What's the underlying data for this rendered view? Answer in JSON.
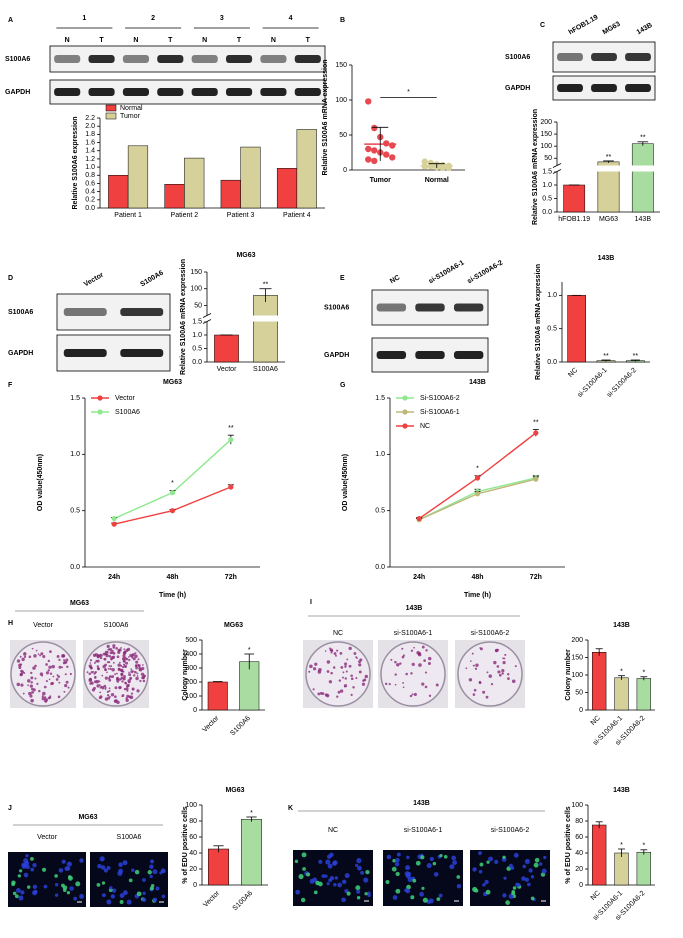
{
  "figure": {
    "panel_letters": [
      "A",
      "B",
      "C",
      "D",
      "E",
      "F",
      "G",
      "H",
      "I",
      "J",
      "K"
    ],
    "blots": [
      {
        "groups": [
          "1",
          "2",
          "3",
          "4"
        ],
        "lanes": [
          "N",
          "T",
          "N",
          "T",
          "N",
          "T",
          "N",
          "T"
        ],
        "rows": [
          "S100A6",
          "GAPDH"
        ]
      },
      {
        "lanes": [
          "hFOB1.19",
          "MG63",
          "143B"
        ],
        "rows": [
          "S100A6",
          "GAPDH"
        ]
      },
      {
        "lanes": [
          "Vector",
          "S100A6"
        ],
        "rows": [
          "S100A6",
          "GAPDH"
        ]
      },
      {
        "lanes": [
          "NC",
          "si-S100A6-1",
          "si-S100A6-2"
        ],
        "rows": [
          "S100A6",
          "GAPDH"
        ]
      }
    ],
    "images": [
      {
        "group": "MG63",
        "labels": [
          "Vector",
          "S100A6"
        ]
      },
      {
        "group": "143B",
        "labels": [
          "NC",
          "si-S100A6-1",
          "si-S100A6-2"
        ]
      },
      {
        "group": "MG63",
        "labels": [
          "Vector",
          "S100A6"
        ]
      },
      {
        "group": "143B",
        "labels": [
          "NC",
          "si-S100A6-1",
          "si-S100A6-2"
        ]
      }
    ]
  },
  "chart_data": [
    {
      "type": "bar",
      "categories": [
        "Patient 1",
        "Patient 2",
        "Patient 3",
        "Patient 4"
      ],
      "series": [
        {
          "name": "Normal",
          "color": "#f04040",
          "values": [
            0.8,
            0.58,
            0.68,
            0.97
          ]
        },
        {
          "name": "Tumor",
          "color": "#d6d19a",
          "values": [
            1.52,
            1.22,
            1.49,
            1.92
          ]
        }
      ],
      "ylabel": "Relative S100A6 expression",
      "ylim": [
        0,
        2.2
      ],
      "yticks": [
        {
          "value": 0,
          "label": "0.0"
        },
        {
          "value": 0.2,
          "label": "0.2"
        },
        {
          "value": 0.4,
          "label": "0.4"
        },
        {
          "value": 0.6,
          "label": "0.6"
        },
        {
          "value": 0.8,
          "label": "0.8"
        },
        {
          "value": 1,
          "label": "1.0"
        },
        {
          "value": 1.2,
          "label": "1.2"
        },
        {
          "value": 1.4,
          "label": "1.4"
        },
        {
          "value": 1.6,
          "label": "1.6"
        },
        {
          "value": 1.8,
          "label": "1.8"
        },
        {
          "value": 2,
          "label": "2.0"
        },
        {
          "value": 2.2,
          "label": "2.2"
        }
      ],
      "legend": "top-left"
    },
    {
      "type": "dot",
      "categories": [
        "Tumor",
        "Normal"
      ],
      "points": [
        [
          98,
          60,
          47,
          38,
          35,
          30,
          28,
          25,
          22,
          18,
          15,
          13
        ],
        [
          12,
          10,
          8,
          7,
          6,
          5,
          5,
          4,
          3,
          3
        ]
      ],
      "means": [
        37,
        6
      ],
      "errors": [
        24,
        3
      ],
      "colors": [
        "#e8484f",
        "#d6d19a"
      ],
      "annotation": "*",
      "ylabel": "Relative S100A6 mRNA expression",
      "ylim": [
        0,
        150
      ],
      "yticks": [
        0,
        50,
        100,
        150
      ]
    },
    {
      "type": "bar",
      "categories": [
        "hFOB1.19",
        "MG63",
        "143B"
      ],
      "values": [
        1,
        35,
        110
      ],
      "errors": [
        0,
        4,
        8
      ],
      "annotations": [
        null,
        "**",
        "**"
      ],
      "colors": [
        "#f04040",
        "#d6d19a",
        "#a8dca0"
      ],
      "ylabel": "Relative S100A6 mRNA expression",
      "ylim": [
        0,
        200
      ],
      "axis_break": [
        1.5,
        20
      ],
      "yticks": [
        {
          "value": 0,
          "label": "0.0"
        },
        {
          "value": 0.5,
          "label": "0.5"
        },
        {
          "value": 1,
          "label": "1.0"
        },
        {
          "value": 1.5,
          "label": "1.5"
        },
        50,
        100,
        150,
        200
      ]
    },
    {
      "type": "bar",
      "title": "MG63",
      "categories": [
        "Vector",
        "S100A6"
      ],
      "values": [
        1,
        80
      ],
      "errors": [
        0,
        20
      ],
      "annotations": [
        null,
        "**"
      ],
      "colors": [
        "#f04040",
        "#d6d19a"
      ],
      "ylabel": "Relative S100A6 mRNA expression",
      "ylim": [
        0,
        150
      ],
      "axis_break": [
        1.5,
        20
      ],
      "yticks": [
        {
          "value": 0,
          "label": "0.0"
        },
        {
          "value": 0.5,
          "label": "0.5"
        },
        {
          "value": 1,
          "label": "1.0"
        },
        {
          "value": 1.5,
          "label": "1.5"
        },
        50,
        100,
        150
      ]
    },
    {
      "type": "bar",
      "title": "143B",
      "categories": [
        "NC",
        "si-S100A6-1",
        "si-S100A6-2"
      ],
      "values": [
        1,
        0.02,
        0.02
      ],
      "errors": [
        0,
        0.01,
        0.01
      ],
      "annotations": [
        null,
        "**",
        "**"
      ],
      "colors": [
        "#f04040",
        "#d6d19a",
        "#a8dca0"
      ],
      "ylabel": "Relative S100A6 mRNA expression",
      "ylim": [
        0,
        1.2
      ],
      "yticks": [
        {
          "value": 0,
          "label": "0.0"
        },
        {
          "value": 0.5,
          "label": "0.5"
        },
        {
          "value": 1,
          "label": "1.0"
        }
      ]
    },
    {
      "type": "line",
      "title": "MG63",
      "categories": [
        "24h",
        "48h",
        "72h"
      ],
      "series": [
        {
          "name": "Vector",
          "color": "#f04040",
          "values": [
            0.38,
            0.5,
            0.71
          ],
          "errors": [
            0.01,
            0.01,
            0.02
          ]
        },
        {
          "name": "S100A6",
          "color": "#8ee88e",
          "values": [
            0.43,
            0.66,
            1.13
          ],
          "errors": [
            0.01,
            0.02,
            0.04
          ]
        }
      ],
      "annotations": [
        null,
        "*",
        "**"
      ],
      "xlabel": "Time (h)",
      "ylabel": "OD value(450nm)",
      "ylim": [
        0,
        1.5
      ],
      "yticks": [
        {
          "value": 0,
          "label": "0.0"
        },
        {
          "value": 0.5,
          "label": "0.5"
        },
        {
          "value": 1,
          "label": "1.0"
        },
        {
          "value": 1.5,
          "label": "1.5"
        }
      ],
      "legend": "top-left"
    },
    {
      "type": "line",
      "title": "143B",
      "categories": [
        "24h",
        "48h",
        "72h"
      ],
      "series": [
        {
          "name": "Si-S100A6-2",
          "color": "#8ee88e",
          "values": [
            0.42,
            0.67,
            0.79
          ],
          "errors": [
            0.01,
            0.02,
            0.02
          ]
        },
        {
          "name": "Si-S100A6-1",
          "color": "#bdb87a",
          "values": [
            0.42,
            0.65,
            0.78
          ],
          "errors": [
            0.01,
            0.02,
            0.02
          ]
        },
        {
          "name": "NC",
          "color": "#f04040",
          "values": [
            0.43,
            0.79,
            1.19
          ],
          "errors": [
            0.01,
            0.02,
            0.03
          ]
        }
      ],
      "annotations": [
        null,
        "*",
        "**"
      ],
      "xlabel": "Time (h)",
      "ylabel": "OD value(450nm)",
      "ylim": [
        0,
        1.5
      ],
      "yticks": [
        {
          "value": 0,
          "label": "0.0"
        },
        {
          "value": 0.5,
          "label": "0.5"
        },
        {
          "value": 1,
          "label": "1.0"
        },
        {
          "value": 1.5,
          "label": "1.5"
        }
      ],
      "legend": "top-left"
    },
    {
      "type": "bar",
      "title": "MG63",
      "categories": [
        "Vector",
        "S100A6"
      ],
      "values": [
        200,
        345
      ],
      "errors": [
        3,
        55
      ],
      "annotations": [
        null,
        "*"
      ],
      "colors": [
        "#f04040",
        "#a8dca0"
      ],
      "ylabel": "Colony number",
      "ylim": [
        0,
        500
      ],
      "yticks": [
        0,
        100,
        200,
        300,
        400,
        500
      ]
    },
    {
      "type": "bar",
      "title": "143B",
      "categories": [
        "NC",
        "si-S100A6-1",
        "si-S100A6-2"
      ],
      "values": [
        165,
        92,
        90
      ],
      "errors": [
        10,
        6,
        5
      ],
      "annotations": [
        null,
        "*",
        "*"
      ],
      "colors": [
        "#f04040",
        "#d6d19a",
        "#a8dca0"
      ],
      "ylabel": "Colony number",
      "ylim": [
        0,
        200
      ],
      "yticks": [
        0,
        50,
        100,
        150,
        200
      ]
    },
    {
      "type": "bar",
      "title": "MG63",
      "categories": [
        "Vector",
        "S100A6"
      ],
      "values": [
        45,
        82
      ],
      "errors": [
        4,
        3
      ],
      "annotations": [
        null,
        "*"
      ],
      "colors": [
        "#f04040",
        "#a8dca0"
      ],
      "ylabel": "% of EDU positive cells",
      "ylim": [
        0,
        100
      ],
      "yticks": [
        0,
        20,
        40,
        60,
        80,
        100
      ]
    },
    {
      "type": "bar",
      "title": "143B",
      "categories": [
        "NC",
        "si-S100A6-1",
        "si-S100A6-2"
      ],
      "values": [
        75,
        40,
        41
      ],
      "errors": [
        4,
        5,
        3
      ],
      "annotations": [
        null,
        "*",
        "*"
      ],
      "colors": [
        "#f04040",
        "#d6d19a",
        "#a8dca0"
      ],
      "ylabel": "% of EDU positive cells",
      "ylim": [
        0,
        100
      ],
      "yticks": [
        0,
        20,
        40,
        60,
        80,
        100
      ]
    }
  ]
}
